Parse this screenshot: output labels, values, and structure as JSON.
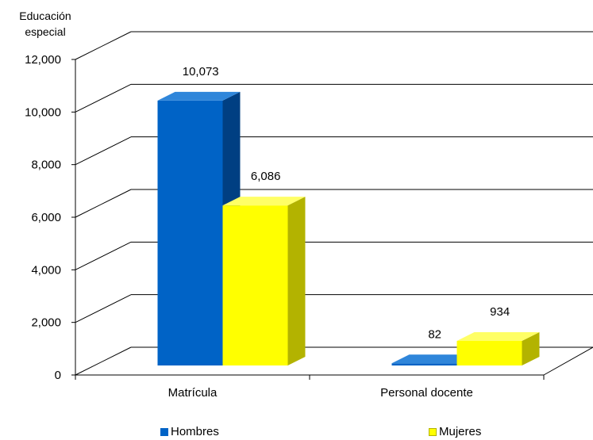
{
  "chart_data": {
    "type": "bar",
    "style": "3d-clustered-column",
    "ylabel_lines": [
      "Educación",
      "especial"
    ],
    "categories": [
      "Matrícula",
      "Personal docente"
    ],
    "ylim": [
      0,
      12000
    ],
    "ytick_step": 2000,
    "yticks": [
      "0",
      "2,000",
      "4,000",
      "6,000",
      "8,000",
      "10,000",
      "12,000"
    ],
    "grid": true,
    "legend_position": "bottom",
    "series": [
      {
        "name": "Hombres",
        "values": [
          10073,
          82
        ],
        "labels": [
          "10,073",
          "82"
        ],
        "color": "#0063C6",
        "dark": "#003F82",
        "light": "#2F86DA"
      },
      {
        "name": "Mujeres",
        "values": [
          6086,
          934
        ],
        "labels": [
          "6,086",
          "934"
        ],
        "color": "#FFFF00",
        "dark": "#B3B300",
        "light": "#FFFF66"
      }
    ]
  }
}
